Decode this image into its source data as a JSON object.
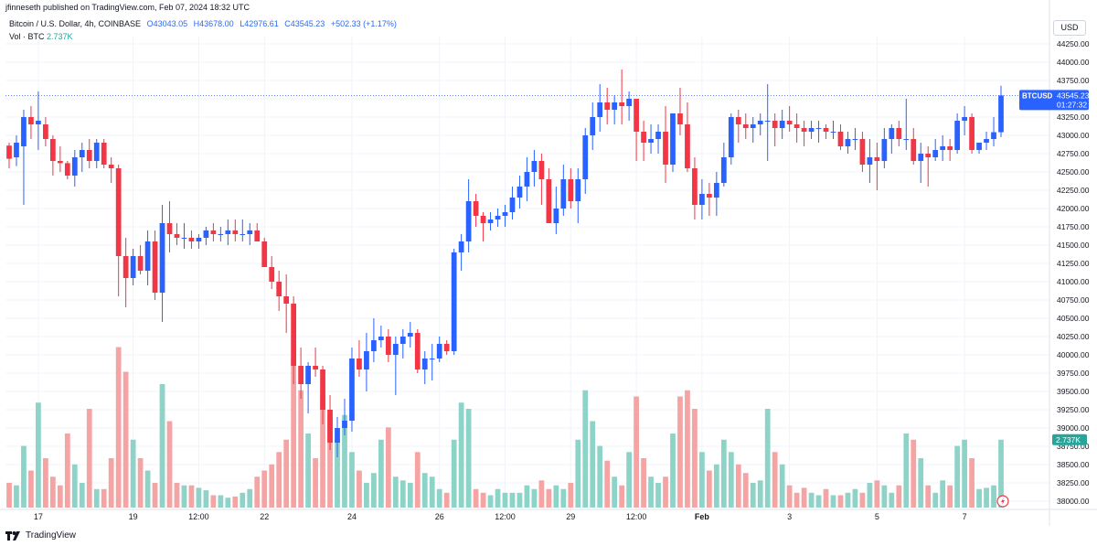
{
  "header": {
    "published": "jfinneseth published on TradingView.com, Feb 07, 2024 18:32 UTC",
    "symbol": "Bitcoin / U.S. Dollar, 4h, COINBASE",
    "open": "O43043.05",
    "high": "H43678.00",
    "low": "L42976.61",
    "close": "C43545.23",
    "change": "+502.33 (+1.17%)",
    "vol_label": "Vol · BTC",
    "vol_value": "2.737K"
  },
  "currency": "USD",
  "footer": {
    "brand": "TradingView"
  },
  "colors": {
    "up": "#2962ff",
    "down": "#f23645",
    "vol_up": "#8dd3c7",
    "vol_down": "#f5a3a3",
    "grid": "#f0f3fa",
    "price_line": "#2962ff"
  },
  "price_tag": {
    "symbol": "BTCUSD",
    "price": "43545.23",
    "countdown": "01:27:32"
  },
  "vol_tag": "2.737K",
  "chart_data": {
    "type": "candlestick",
    "interval": "4h",
    "ylim": [
      37900,
      44350
    ],
    "y_ticks": [
      "44250.00",
      "44000.00",
      "43750.00",
      "43500.00",
      "43250.00",
      "43000.00",
      "42750.00",
      "42500.00",
      "42250.00",
      "42000.00",
      "41750.00",
      "41500.00",
      "41250.00",
      "41000.00",
      "40750.00",
      "40500.00",
      "40250.00",
      "40000.00",
      "39750.00",
      "39500.00",
      "39250.00",
      "39000.00",
      "38750.00",
      "38500.00",
      "38250.00",
      "38000.00"
    ],
    "x_ticks": [
      {
        "label": "17",
        "bar": 4
      },
      {
        "label": "19",
        "bar": 17
      },
      {
        "label": "12:00",
        "bar": 26
      },
      {
        "label": "22",
        "bar": 35
      },
      {
        "label": "24",
        "bar": 47
      },
      {
        "label": "26",
        "bar": 59
      },
      {
        "label": "12:00",
        "bar": 68
      },
      {
        "label": "29",
        "bar": 77
      },
      {
        "label": "12:00",
        "bar": 86
      },
      {
        "label": "Feb",
        "bar": 95
      },
      {
        "label": "3",
        "bar": 107
      },
      {
        "label": "5",
        "bar": 119
      },
      {
        "label": "7",
        "bar": 131
      }
    ],
    "candles": [
      [
        42860,
        42900,
        42550,
        42680,
        0.2
      ],
      [
        42700,
        43000,
        42580,
        42900,
        0.18
      ],
      [
        42850,
        43350,
        42050,
        43250,
        0.5
      ],
      [
        43250,
        43400,
        42950,
        43150,
        0.3
      ],
      [
        43150,
        43600,
        42800,
        43200,
        0.85
      ],
      [
        43150,
        43250,
        42850,
        42950,
        0.4
      ],
      [
        42950,
        43000,
        42450,
        42650,
        0.25
      ],
      [
        42650,
        42850,
        42500,
        42620,
        0.18
      ],
      [
        42620,
        42650,
        42400,
        42450,
        0.6
      ],
      [
        42450,
        42800,
        42300,
        42700,
        0.35
      ],
      [
        42700,
        42900,
        42500,
        42800,
        0.2
      ],
      [
        42800,
        42950,
        42550,
        42650,
        0.8
      ],
      [
        42650,
        42950,
        42550,
        42900,
        0.15
      ],
      [
        42900,
        42950,
        42550,
        42600,
        0.15
      ],
      [
        42600,
        42700,
        42350,
        42550,
        0.4
      ],
      [
        42550,
        42600,
        40800,
        41350,
        1.3
      ],
      [
        41350,
        41600,
        40650,
        41050,
        1.1
      ],
      [
        41050,
        41450,
        40950,
        41350,
        0.55
      ],
      [
        41350,
        41500,
        41100,
        41150,
        0.4
      ],
      [
        41150,
        41700,
        40950,
        41550,
        0.3
      ],
      [
        41550,
        41700,
        40750,
        40850,
        0.2
      ],
      [
        40850,
        42050,
        40450,
        41800,
        1.0
      ],
      [
        41800,
        42100,
        41400,
        41650,
        0.7
      ],
      [
        41650,
        41800,
        41500,
        41600,
        0.2
      ],
      [
        41600,
        41800,
        41450,
        41600,
        0.18
      ],
      [
        41600,
        41700,
        41450,
        41550,
        0.18
      ],
      [
        41550,
        41650,
        41450,
        41600,
        0.16
      ],
      [
        41600,
        41750,
        41500,
        41700,
        0.14
      ],
      [
        41700,
        41800,
        41550,
        41650,
        0.1
      ],
      [
        41650,
        41750,
        41550,
        41650,
        0.1
      ],
      [
        41650,
        41850,
        41500,
        41700,
        0.08
      ],
      [
        41700,
        41850,
        41550,
        41650,
        0.09
      ],
      [
        41650,
        41850,
        41550,
        41650,
        0.12
      ],
      [
        41650,
        41800,
        41500,
        41700,
        0.15
      ],
      [
        41700,
        41800,
        41550,
        41550,
        0.25
      ],
      [
        41550,
        41600,
        41200,
        41200,
        0.3
      ],
      [
        41200,
        41350,
        40900,
        41000,
        0.35
      ],
      [
        41000,
        41150,
        40600,
        40800,
        0.45
      ],
      [
        40800,
        41100,
        40300,
        40700,
        0.55
      ],
      [
        40700,
        40800,
        39600,
        39850,
        1.2
      ],
      [
        39850,
        40100,
        39400,
        39600,
        0.95
      ],
      [
        39600,
        39900,
        39200,
        39850,
        0.6
      ],
      [
        39850,
        40100,
        39700,
        39800,
        0.4
      ],
      [
        39800,
        39850,
        39050,
        39250,
        0.9
      ],
      [
        39250,
        39450,
        38700,
        38800,
        0.75
      ],
      [
        38800,
        39150,
        38600,
        39000,
        0.55
      ],
      [
        39000,
        39400,
        38900,
        39100,
        0.75
      ],
      [
        39100,
        40100,
        38950,
        39950,
        0.45
      ],
      [
        39950,
        40200,
        39700,
        39800,
        0.3
      ],
      [
        39800,
        40300,
        39500,
        40050,
        0.2
      ],
      [
        40050,
        40500,
        39900,
        40200,
        0.28
      ],
      [
        40200,
        40400,
        40100,
        40250,
        0.55
      ],
      [
        40250,
        40350,
        39900,
        40000,
        0.65
      ],
      [
        40000,
        40250,
        39450,
        40150,
        0.25
      ],
      [
        40150,
        40350,
        39950,
        40250,
        0.22
      ],
      [
        40250,
        40450,
        40100,
        40300,
        0.2
      ],
      [
        40300,
        40350,
        39750,
        39800,
        0.45
      ],
      [
        39800,
        40050,
        39600,
        39950,
        0.28
      ],
      [
        39950,
        40150,
        39650,
        39950,
        0.25
      ],
      [
        39950,
        40250,
        39900,
        40150,
        0.15
      ],
      [
        40150,
        40200,
        40000,
        40050,
        0.12
      ],
      [
        40050,
        41450,
        40000,
        41400,
        0.55
      ],
      [
        41400,
        41650,
        41150,
        41550,
        0.85
      ],
      [
        41550,
        42400,
        41400,
        42100,
        0.8
      ],
      [
        42100,
        42200,
        41750,
        41900,
        0.15
      ],
      [
        41900,
        41950,
        41550,
        41800,
        0.12
      ],
      [
        41800,
        41950,
        41700,
        41850,
        0.1
      ],
      [
        41850,
        42000,
        41750,
        41900,
        0.15
      ],
      [
        41900,
        42050,
        41750,
        41950,
        0.12
      ],
      [
        41950,
        42300,
        41850,
        42150,
        0.12
      ],
      [
        42150,
        42450,
        42000,
        42300,
        0.12
      ],
      [
        42300,
        42700,
        42100,
        42500,
        0.18
      ],
      [
        42500,
        42800,
        42300,
        42650,
        0.15
      ],
      [
        42650,
        42750,
        42050,
        42400,
        0.22
      ],
      [
        42400,
        42550,
        41800,
        41800,
        0.15
      ],
      [
        41800,
        42300,
        41650,
        42000,
        0.18
      ],
      [
        42000,
        42600,
        41900,
        42400,
        0.15
      ],
      [
        42400,
        42550,
        42000,
        42100,
        0.2
      ],
      [
        42100,
        42550,
        41800,
        42400,
        0.55
      ],
      [
        42400,
        43100,
        42200,
        43000,
        0.95
      ],
      [
        43000,
        43450,
        42800,
        43250,
        0.7
      ],
      [
        43250,
        43700,
        43050,
        43450,
        0.5
      ],
      [
        43450,
        43650,
        43150,
        43350,
        0.38
      ],
      [
        43350,
        43550,
        43150,
        43450,
        0.25
      ],
      [
        43450,
        43900,
        43150,
        43400,
        0.18
      ],
      [
        43400,
        43600,
        43200,
        43500,
        0.45
      ],
      [
        43500,
        43500,
        42650,
        43050,
        0.9
      ],
      [
        43050,
        43200,
        42650,
        42900,
        0.4
      ],
      [
        42900,
        43150,
        42750,
        42950,
        0.25
      ],
      [
        42950,
        43150,
        42750,
        43050,
        0.2
      ],
      [
        43050,
        43400,
        42350,
        42600,
        0.25
      ],
      [
        42600,
        43300,
        42500,
        43300,
        0.6
      ],
      [
        43300,
        43650,
        43000,
        43150,
        0.9
      ],
      [
        43150,
        43450,
        42500,
        42550,
        0.95
      ],
      [
        42550,
        42700,
        41850,
        42050,
        0.8
      ],
      [
        42050,
        42400,
        41850,
        42200,
        0.45
      ],
      [
        42200,
        42350,
        41900,
        42150,
        0.3
      ],
      [
        42150,
        42500,
        41900,
        42350,
        0.35
      ],
      [
        42350,
        42900,
        42300,
        42700,
        0.55
      ],
      [
        42700,
        43300,
        42600,
        43250,
        0.45
      ],
      [
        43250,
        43350,
        42900,
        43150,
        0.35
      ],
      [
        43150,
        43300,
        42950,
        43100,
        0.28
      ],
      [
        43100,
        43250,
        42900,
        43150,
        0.2
      ],
      [
        43150,
        43300,
        43000,
        43200,
        0.22
      ],
      [
        43200,
        43700,
        42650,
        43200,
        0.8
      ],
      [
        43200,
        43300,
        42850,
        43100,
        0.45
      ],
      [
        43100,
        43350,
        42950,
        43200,
        0.35
      ],
      [
        43200,
        43400,
        43050,
        43150,
        0.18
      ],
      [
        43150,
        43300,
        42900,
        43100,
        0.12
      ],
      [
        43100,
        43200,
        42850,
        43050,
        0.16
      ],
      [
        43050,
        43200,
        42950,
        43100,
        0.12
      ],
      [
        43100,
        43200,
        42900,
        43100,
        0.1
      ],
      [
        43100,
        43150,
        42950,
        43050,
        0.15
      ],
      [
        43050,
        43200,
        42950,
        43050,
        0.1
      ],
      [
        43050,
        43150,
        42800,
        42850,
        0.1
      ],
      [
        42850,
        43050,
        42750,
        42950,
        0.12
      ],
      [
        42950,
        43100,
        42800,
        42950,
        0.15
      ],
      [
        42950,
        43050,
        42500,
        42600,
        0.12
      ],
      [
        42600,
        42950,
        42350,
        42700,
        0.2
      ],
      [
        42700,
        42900,
        42250,
        42650,
        0.22
      ],
      [
        42650,
        43100,
        42550,
        42950,
        0.18
      ],
      [
        42950,
        43150,
        42750,
        43100,
        0.12
      ],
      [
        43100,
        43200,
        42850,
        42950,
        0.18
      ],
      [
        42950,
        43500,
        42800,
        42950,
        0.6
      ],
      [
        42950,
        43100,
        42600,
        42650,
        0.55
      ],
      [
        42650,
        42900,
        42350,
        42750,
        0.4
      ],
      [
        42750,
        42850,
        42300,
        42700,
        0.18
      ],
      [
        42700,
        42950,
        42650,
        42800,
        0.12
      ],
      [
        42800,
        43000,
        42650,
        42850,
        0.22
      ],
      [
        42850,
        42950,
        42650,
        42800,
        0.18
      ],
      [
        42800,
        43300,
        42750,
        43200,
        0.5
      ],
      [
        43200,
        43400,
        43000,
        43250,
        0.55
      ],
      [
        43250,
        43300,
        42750,
        42800,
        0.4
      ],
      [
        42800,
        42900,
        42750,
        42900,
        0.15
      ],
      [
        42900,
        43050,
        42800,
        42950,
        0.16
      ],
      [
        42950,
        43250,
        42850,
        43043,
        0.18
      ],
      [
        43043,
        43678,
        42976,
        43545,
        0.55
      ]
    ]
  }
}
